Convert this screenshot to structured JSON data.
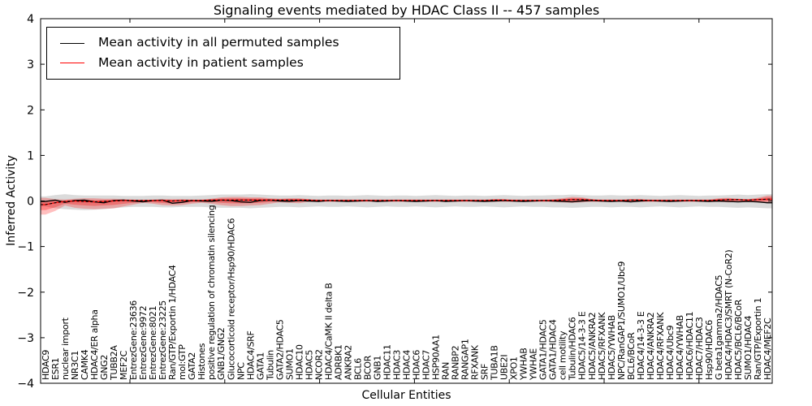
{
  "chart_data": {
    "type": "line",
    "title": "Signaling events mediated by HDAC Class II -- 457 samples",
    "xlabel": "Cellular Entities",
    "ylabel": "Inferred Activity",
    "ylim": [
      -4,
      4
    ],
    "ytick_labels": [
      "−4",
      "−3",
      "−2",
      "−1",
      "0",
      "1",
      "2",
      "3",
      "4"
    ],
    "ytick_values": [
      -4,
      -3,
      -2,
      -1,
      0,
      1,
      2,
      3,
      4
    ],
    "grid": false,
    "legend_position": "upper-left",
    "legend": [
      {
        "label": "Mean activity in all permuted samples",
        "color": "#000000"
      },
      {
        "label": "Mean activity in patient samples",
        "color": "#ff0000"
      }
    ],
    "colors": {
      "permuted_line": "#000000",
      "patient_line": "#ff0000",
      "permuted_band": "#999999",
      "patient_band": "#ff0000"
    },
    "categories": [
      "HDAC9",
      "ESR1",
      "nuclear import",
      "NR3C1",
      "CAMK4",
      "HDAC4/ER alpha",
      "GNG2",
      "TUBB2A",
      "MEF2C",
      "EntrezGene:23636",
      "EntrezGene:9972",
      "EntrezGene:8021",
      "EntrezGene:23225",
      "Ran/GTP/Exportin 1/HDAC4",
      "mol:GTP",
      "GATA2",
      "Histones",
      "positive regulation of chromatin silencing",
      "GNB1/GNG2",
      "Glucocorticoid receptor/Hsp90/HDAC6",
      "NPC",
      "HDAC4/SRF",
      "GATA1",
      "Tubulin",
      "GATA2/HDAC5",
      "SUMO1",
      "HDAC10",
      "HDAC5",
      "NCOR2",
      "HDAC4/CaMK II delta B",
      "ADRBK1",
      "ANKRA2",
      "BCL6",
      "BCOR",
      "GNB1",
      "HDAC11",
      "HDAC3",
      "HDAC4",
      "HDAC6",
      "HDAC7",
      "HSP90AA1",
      "RAN",
      "RANBP2",
      "RANGAP1",
      "RFXANK",
      "SRF",
      "TUBA1B",
      "UBE2I",
      "XPO1",
      "YWHAB",
      "YWHAE",
      "GATA1/HDAC5",
      "GATA1/HDAC4",
      "cell motility",
      "Tubulin/HDAC6",
      "HDAC5/14-3-3 E",
      "HDAC5/ANKRA2",
      "HDAC5/RFXANK",
      "HDAC5/YWHAB",
      "NPC/RanGAP1/SUMO1/Ubc9",
      "BCL6/BCoR",
      "HDAC4/14-3-3 E",
      "HDAC4/ANKRA2",
      "HDAC4/RFXANK",
      "HDAC4/Ubc9",
      "HDAC4/YWHAB",
      "HDAC6/HDAC11",
      "HDAC7/HDAC3",
      "Hsp90/HDAC6",
      "G beta1gamma2/HDAC5",
      "HDAC4/HDAC3/SMRT (N-CoR2)",
      "HDAC5/BCL6/BCoR",
      "SUMO1/HDAC4",
      "Ran/GTP/Exportin 1",
      "HDAC4/MEF2C"
    ],
    "series": [
      {
        "name": "Mean activity in all permuted samples",
        "values": [
          -0.01,
          0.02,
          -0.03,
          0.01,
          0.02,
          -0.02,
          -0.04,
          0.01,
          0.02,
          0.0,
          -0.02,
          0.01,
          0.02,
          -0.05,
          -0.03,
          0.01,
          0.0,
          -0.01,
          0.02,
          0.01,
          -0.02,
          -0.03,
          0.01,
          0.02,
          0.0,
          -0.01,
          0.01,
          0.0,
          -0.01,
          0.01,
          0.0,
          -0.01,
          0.0,
          0.01,
          -0.01,
          0.0,
          0.01,
          0.0,
          -0.01,
          0.0,
          0.01,
          -0.01,
          0.0,
          0.01,
          0.0,
          -0.01,
          0.0,
          0.01,
          0.0,
          -0.01,
          0.0,
          0.01,
          0.0,
          -0.01,
          -0.02,
          0.0,
          0.01,
          0.0,
          -0.01,
          0.0,
          -0.02,
          0.0,
          0.01,
          0.0,
          -0.01,
          0.0,
          0.01,
          0.0,
          -0.01,
          0.0,
          -0.01,
          -0.02,
          -0.01,
          -0.02,
          -0.04
        ]
      },
      {
        "name": "Mean activity in patient samples",
        "values": [
          -0.08,
          -0.04,
          -0.01,
          0.0,
          -0.01,
          -0.02,
          -0.01,
          0.0,
          0.01,
          0.01,
          0.01,
          0.01,
          0.01,
          0.0,
          0.01,
          0.01,
          0.01,
          0.02,
          0.02,
          0.02,
          0.02,
          0.02,
          0.02,
          0.02,
          0.02,
          0.02,
          0.02,
          0.02,
          0.01,
          0.01,
          0.01,
          0.01,
          0.01,
          0.01,
          0.01,
          0.01,
          0.01,
          0.01,
          0.01,
          0.01,
          0.01,
          0.01,
          0.01,
          0.01,
          0.01,
          0.01,
          0.02,
          0.02,
          0.01,
          0.01,
          0.01,
          0.01,
          0.01,
          0.02,
          0.03,
          0.03,
          0.02,
          0.01,
          0.01,
          0.01,
          0.02,
          0.02,
          0.01,
          0.01,
          0.01,
          0.01,
          0.01,
          0.01,
          0.01,
          0.02,
          0.03,
          0.03,
          0.02,
          0.03,
          0.04
        ]
      }
    ],
    "bands": [
      {
        "name": "permuted-confidence-band",
        "upper": [
          0.1,
          0.13,
          0.15,
          0.13,
          0.12,
          0.12,
          0.12,
          0.12,
          0.11,
          0.11,
          0.11,
          0.12,
          0.12,
          0.11,
          0.11,
          0.11,
          0.12,
          0.13,
          0.14,
          0.14,
          0.14,
          0.15,
          0.14,
          0.13,
          0.12,
          0.12,
          0.13,
          0.12,
          0.11,
          0.12,
          0.12,
          0.11,
          0.12,
          0.13,
          0.12,
          0.11,
          0.12,
          0.12,
          0.11,
          0.12,
          0.13,
          0.12,
          0.11,
          0.12,
          0.12,
          0.11,
          0.12,
          0.13,
          0.12,
          0.11,
          0.12,
          0.12,
          0.13,
          0.13,
          0.14,
          0.13,
          0.12,
          0.12,
          0.13,
          0.12,
          0.12,
          0.13,
          0.12,
          0.11,
          0.12,
          0.13,
          0.12,
          0.11,
          0.12,
          0.12,
          0.13,
          0.14,
          0.13,
          0.14,
          0.15
        ],
        "lower": [
          -0.12,
          -0.16,
          -0.18,
          -0.19,
          -0.2,
          -0.19,
          -0.18,
          -0.16,
          -0.14,
          -0.13,
          -0.13,
          -0.13,
          -0.14,
          -0.14,
          -0.13,
          -0.13,
          -0.13,
          -0.14,
          -0.15,
          -0.15,
          -0.15,
          -0.16,
          -0.15,
          -0.14,
          -0.13,
          -0.13,
          -0.14,
          -0.13,
          -0.12,
          -0.13,
          -0.13,
          -0.12,
          -0.13,
          -0.14,
          -0.13,
          -0.12,
          -0.13,
          -0.13,
          -0.12,
          -0.13,
          -0.14,
          -0.13,
          -0.12,
          -0.13,
          -0.13,
          -0.12,
          -0.13,
          -0.14,
          -0.13,
          -0.12,
          -0.13,
          -0.13,
          -0.14,
          -0.14,
          -0.15,
          -0.14,
          -0.13,
          -0.13,
          -0.14,
          -0.13,
          -0.13,
          -0.14,
          -0.13,
          -0.12,
          -0.13,
          -0.14,
          -0.13,
          -0.12,
          -0.13,
          -0.13,
          -0.14,
          -0.15,
          -0.14,
          -0.15,
          -0.16
        ]
      },
      {
        "name": "patient-confidence-band",
        "upper": [
          0.07,
          0.04,
          0.03,
          0.05,
          0.06,
          0.06,
          0.05,
          0.05,
          0.04,
          0.03,
          0.02,
          0.03,
          0.04,
          0.04,
          0.04,
          0.03,
          0.03,
          0.05,
          0.08,
          0.09,
          0.09,
          0.08,
          0.08,
          0.06,
          0.05,
          0.06,
          0.06,
          0.04,
          0.03,
          0.03,
          0.03,
          0.03,
          0.03,
          0.03,
          0.03,
          0.03,
          0.03,
          0.03,
          0.03,
          0.03,
          0.03,
          0.03,
          0.03,
          0.03,
          0.03,
          0.03,
          0.04,
          0.04,
          0.03,
          0.03,
          0.03,
          0.03,
          0.04,
          0.06,
          0.09,
          0.08,
          0.04,
          0.03,
          0.03,
          0.03,
          0.04,
          0.04,
          0.03,
          0.03,
          0.03,
          0.03,
          0.03,
          0.03,
          0.03,
          0.06,
          0.07,
          0.05,
          0.04,
          0.07,
          0.12
        ],
        "lower": [
          -0.3,
          -0.22,
          -0.1,
          -0.15,
          -0.17,
          -0.18,
          -0.17,
          -0.16,
          -0.12,
          -0.08,
          -0.04,
          -0.06,
          -0.09,
          -0.1,
          -0.09,
          -0.06,
          -0.04,
          -0.06,
          -0.09,
          -0.11,
          -0.11,
          -0.1,
          -0.09,
          -0.06,
          -0.03,
          -0.04,
          -0.05,
          -0.02,
          -0.02,
          -0.02,
          -0.02,
          -0.02,
          -0.02,
          -0.02,
          -0.02,
          -0.02,
          -0.02,
          -0.02,
          -0.02,
          -0.02,
          -0.02,
          -0.02,
          -0.02,
          -0.02,
          -0.02,
          -0.02,
          -0.02,
          -0.02,
          -0.02,
          -0.02,
          -0.02,
          -0.02,
          -0.02,
          -0.03,
          -0.04,
          -0.03,
          -0.02,
          -0.02,
          -0.02,
          -0.02,
          -0.02,
          -0.02,
          -0.02,
          -0.02,
          -0.02,
          -0.02,
          -0.02,
          -0.02,
          -0.02,
          -0.02,
          -0.03,
          -0.02,
          -0.02,
          -0.03,
          -0.05
        ]
      }
    ]
  }
}
